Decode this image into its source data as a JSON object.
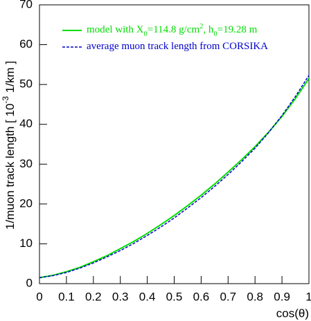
{
  "chart_data": {
    "type": "line",
    "x_label": "cos(θ)",
    "y_label": [
      "1/muon track length [ 10",
      "-3",
      " 1/km ]"
    ],
    "y_label_format": [
      "",
      "sup",
      ""
    ],
    "x": [
      0,
      0.05,
      0.1,
      0.15,
      0.2,
      0.25,
      0.3,
      0.35,
      0.4,
      0.45,
      0.5,
      0.55,
      0.6,
      0.65,
      0.7,
      0.75,
      0.8,
      0.85,
      0.9,
      0.95,
      1
    ],
    "series": [
      {
        "name": [
          "model with X",
          "0",
          "=114.8 g/cm",
          "2",
          ", h",
          "0",
          "=19.28 m"
        ],
        "name_format": [
          "",
          "sub",
          "",
          "sup",
          "",
          "sub",
          ""
        ],
        "color": "#00dd00",
        "dash": "solid",
        "values": [
          1.5,
          2.1,
          3.0,
          4.1,
          5.5,
          7.0,
          8.8,
          10.6,
          12.6,
          14.8,
          17.1,
          19.6,
          22.2,
          25.0,
          28.0,
          31.1,
          34.4,
          38.0,
          42.0,
          46.5,
          51.5
        ]
      },
      {
        "name": [
          "average muon track length from CORSIKA"
        ],
        "name_format": [
          ""
        ],
        "color": "#0000cc",
        "dash": "dashed",
        "values": [
          1.5,
          2.0,
          2.8,
          3.9,
          5.2,
          6.7,
          8.3,
          10.1,
          12.1,
          14.2,
          16.5,
          19.0,
          21.6,
          24.4,
          27.4,
          30.6,
          34.0,
          37.9,
          42.2,
          47.0,
          52.3
        ]
      }
    ],
    "xlim": [
      0,
      1
    ],
    "ylim": [
      0,
      70
    ],
    "xticks": [
      0,
      0.1,
      0.2,
      0.3,
      0.4,
      0.5,
      0.6,
      0.7,
      0.8,
      0.9,
      1
    ],
    "yticks": [
      0,
      10,
      20,
      30,
      40,
      50,
      60,
      70
    ]
  }
}
